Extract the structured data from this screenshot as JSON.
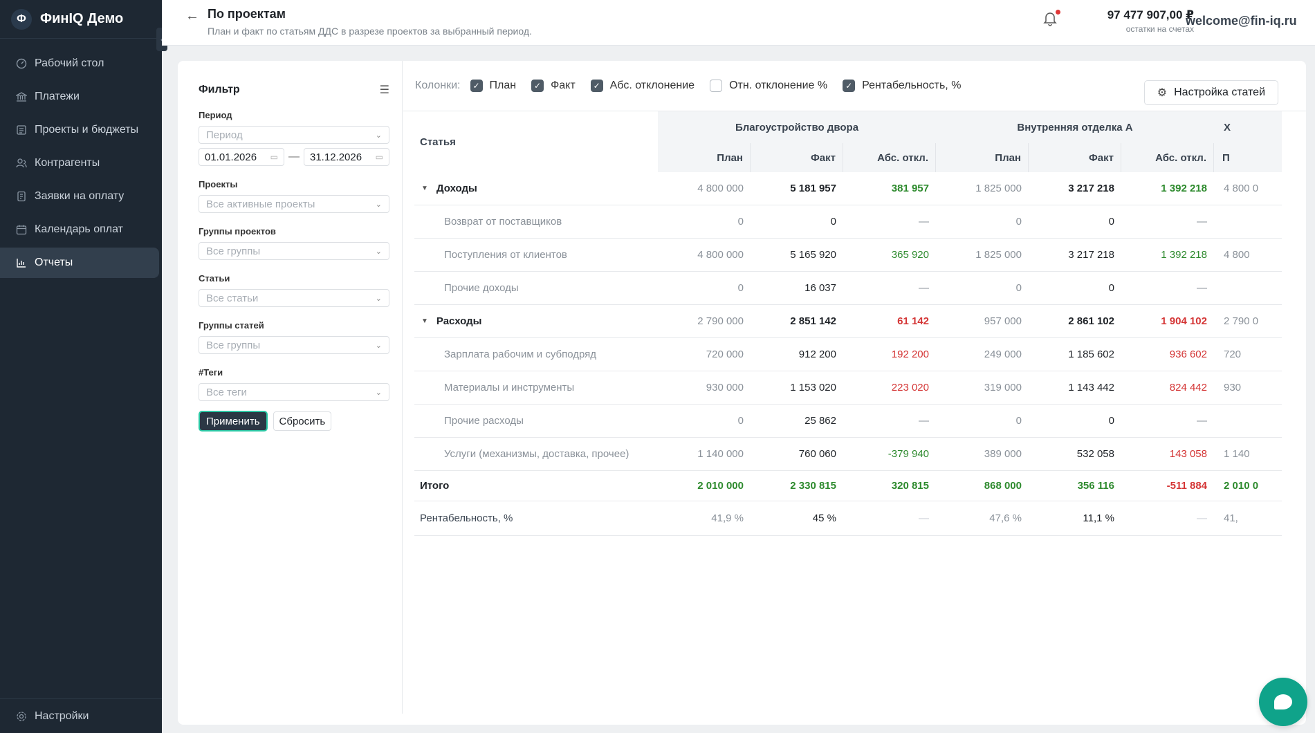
{
  "app": {
    "logo_letter": "Ф",
    "name": "ФинIQ Демо"
  },
  "sidebar": {
    "items": [
      {
        "label": "Рабочий стол",
        "icon": "dashboard-icon"
      },
      {
        "label": "Платежи",
        "icon": "bank-icon"
      },
      {
        "label": "Проекты и бюджеты",
        "icon": "projects-icon"
      },
      {
        "label": "Контрагенты",
        "icon": "users-icon"
      },
      {
        "label": "Заявки на оплату",
        "icon": "requests-icon"
      },
      {
        "label": "Календарь оплат",
        "icon": "calendar-icon"
      },
      {
        "label": "Отчеты",
        "icon": "chart-icon",
        "active": true
      }
    ],
    "settings_label": "Настройки"
  },
  "header": {
    "title": "По проектам",
    "subtitle": "План и факт по статьям ДДС в разрезе проектов за выбранный период.",
    "balance_value": "97 477 907,00 ₽",
    "balance_label": "остатки на счетах",
    "user_email": "welcome@fin-iq.ru"
  },
  "filter": {
    "title": "Фильтр",
    "period_label": "Период",
    "period_placeholder": "Период",
    "date_from": "01.01.2026",
    "date_to": "31.12.2026",
    "date_sep": "—",
    "projects_label": "Проекты",
    "projects_placeholder": "Все активные проекты",
    "project_groups_label": "Группы проектов",
    "project_groups_placeholder": "Все группы",
    "articles_label": "Статьи",
    "articles_placeholder": "Все статьи",
    "article_groups_label": "Группы статей",
    "article_groups_placeholder": "Все группы",
    "tags_label": "#Теги",
    "tags_placeholder": "Все теги",
    "apply_label": "Применить",
    "reset_label": "Сбросить"
  },
  "columns_bar": {
    "label": "Колонки:",
    "options": [
      {
        "label": "План",
        "checked": true
      },
      {
        "label": "Факт",
        "checked": true
      },
      {
        "label": "Абс. отклонение",
        "checked": true
      },
      {
        "label": "Отн. отклонение %",
        "checked": false
      },
      {
        "label": "Рентабельность, %",
        "checked": true
      }
    ],
    "settings_label": "Настройка статей"
  },
  "table": {
    "article_header": "Статья",
    "projects": [
      "Благоустройство двора",
      "Внутренняя отделка А",
      "Х"
    ],
    "sub_headers": [
      "План",
      "Факт",
      "Абс. откл.",
      "План",
      "Факт",
      "Абс. откл.",
      "П"
    ],
    "rows": [
      {
        "type": "group",
        "name": "Доходы",
        "cells": [
          [
            "4 800 000",
            "plan"
          ],
          [
            "5 181 957",
            "fact"
          ],
          [
            "381 957",
            "green"
          ],
          [
            "1 825 000",
            "plan"
          ],
          [
            "3 217 218",
            "fact"
          ],
          [
            "1 392 218",
            "green"
          ],
          [
            "4 800 0",
            "plan"
          ]
        ]
      },
      {
        "type": "item",
        "name": "Возврат от поставщиков",
        "cells": [
          [
            "0",
            "plan"
          ],
          [
            "0",
            "fact"
          ],
          [
            "—",
            "dash"
          ],
          [
            "0",
            "plan"
          ],
          [
            "0",
            "fact"
          ],
          [
            "—",
            "dash"
          ],
          [
            "",
            "plan"
          ]
        ]
      },
      {
        "type": "item",
        "name": "Поступления от клиентов",
        "cells": [
          [
            "4 800 000",
            "plan"
          ],
          [
            "5 165 920",
            "fact"
          ],
          [
            "365 920",
            "green"
          ],
          [
            "1 825 000",
            "plan"
          ],
          [
            "3 217 218",
            "fact"
          ],
          [
            "1 392 218",
            "green"
          ],
          [
            "4 800",
            "plan"
          ]
        ]
      },
      {
        "type": "item",
        "name": "Прочие доходы",
        "cells": [
          [
            "0",
            "plan"
          ],
          [
            "16 037",
            "fact"
          ],
          [
            "—",
            "dash"
          ],
          [
            "0",
            "plan"
          ],
          [
            "0",
            "fact"
          ],
          [
            "—",
            "dash"
          ],
          [
            "",
            "plan"
          ]
        ]
      },
      {
        "type": "group",
        "name": "Расходы",
        "cells": [
          [
            "2 790 000",
            "plan"
          ],
          [
            "2 851 142",
            "fact"
          ],
          [
            "61 142",
            "red"
          ],
          [
            "957 000",
            "plan"
          ],
          [
            "2 861 102",
            "fact"
          ],
          [
            "1 904 102",
            "red"
          ],
          [
            "2 790 0",
            "plan"
          ]
        ]
      },
      {
        "type": "item",
        "name": "Зарплата рабочим и субподряд",
        "cells": [
          [
            "720 000",
            "plan"
          ],
          [
            "912 200",
            "fact"
          ],
          [
            "192 200",
            "red"
          ],
          [
            "249 000",
            "plan"
          ],
          [
            "1 185 602",
            "fact"
          ],
          [
            "936 602",
            "red"
          ],
          [
            "720",
            "plan"
          ]
        ]
      },
      {
        "type": "item",
        "name": "Материалы и инструменты",
        "cells": [
          [
            "930 000",
            "plan"
          ],
          [
            "1 153 020",
            "fact"
          ],
          [
            "223 020",
            "red"
          ],
          [
            "319 000",
            "plan"
          ],
          [
            "1 143 442",
            "fact"
          ],
          [
            "824 442",
            "red"
          ],
          [
            "930",
            "plan"
          ]
        ]
      },
      {
        "type": "item",
        "name": "Прочие расходы",
        "cells": [
          [
            "0",
            "plan"
          ],
          [
            "25 862",
            "fact"
          ],
          [
            "—",
            "dash"
          ],
          [
            "0",
            "plan"
          ],
          [
            "0",
            "fact"
          ],
          [
            "—",
            "dash"
          ],
          [
            "",
            "plan"
          ]
        ]
      },
      {
        "type": "item",
        "name": "Услуги (механизмы, доставка, прочее)",
        "cells": [
          [
            "1 140 000",
            "plan"
          ],
          [
            "760 060",
            "fact"
          ],
          [
            "-379 940",
            "green"
          ],
          [
            "389 000",
            "plan"
          ],
          [
            "532 058",
            "fact"
          ],
          [
            "143 058",
            "red"
          ],
          [
            "1 140",
            "plan"
          ]
        ]
      },
      {
        "type": "total",
        "name": "Итого",
        "cells": [
          [
            "2 010 000",
            "green"
          ],
          [
            "2 330 815",
            "green"
          ],
          [
            "320 815",
            "green"
          ],
          [
            "868 000",
            "green"
          ],
          [
            "356 116",
            "green"
          ],
          [
            "-511 884",
            "red"
          ],
          [
            "2 010 0",
            "green"
          ]
        ]
      },
      {
        "type": "rent",
        "name": "Рентабельность, %",
        "cells": [
          [
            "41,9 %",
            "plan"
          ],
          [
            "45 %",
            "fact"
          ],
          [
            "—",
            "dash"
          ],
          [
            "47,6 %",
            "plan"
          ],
          [
            "11,1 %",
            "fact"
          ],
          [
            "—",
            "dash"
          ],
          [
            "41,",
            "plan"
          ]
        ]
      }
    ]
  }
}
